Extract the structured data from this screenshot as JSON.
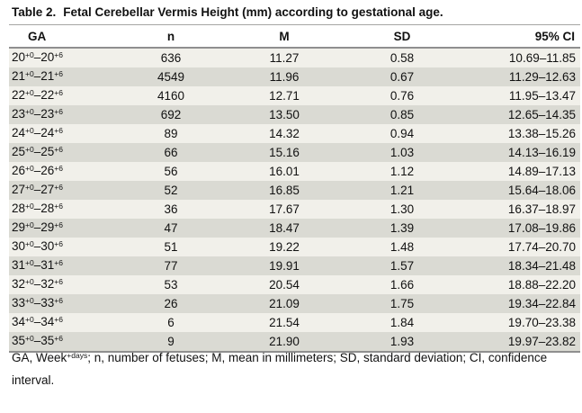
{
  "title": {
    "label": "Table 2.",
    "text": "Fetal Cerebellar Vermis Height (mm) according to gestational age."
  },
  "colors": {
    "row_light": "#f1f0ea",
    "row_dark": "#dadad3",
    "rule": "#8f8f8f",
    "text": "#111111",
    "background": "#ffffff"
  },
  "table": {
    "columns": [
      "GA",
      "n",
      "M",
      "SD",
      "95% CI"
    ],
    "rows": [
      {
        "ga": {
          "from": "20",
          "from_sup": "+0",
          "dash": "–",
          "to": "20",
          "to_sup": "+6"
        },
        "n": "636",
        "m": "11.27",
        "sd": "0.58",
        "ci": "10.69–11.85"
      },
      {
        "ga": {
          "from": "21",
          "from_sup": "+0",
          "dash": "–",
          "to": "21",
          "to_sup": "+6"
        },
        "n": "4549",
        "m": "11.96",
        "sd": "0.67",
        "ci": "11.29–12.63"
      },
      {
        "ga": {
          "from": "22",
          "from_sup": "+0",
          "dash": "–",
          "to": "22",
          "to_sup": "+6"
        },
        "n": "4160",
        "m": "12.71",
        "sd": "0.76",
        "ci": "11.95–13.47"
      },
      {
        "ga": {
          "from": "23",
          "from_sup": "+0",
          "dash": "–",
          "to": "23",
          "to_sup": "+6"
        },
        "n": "692",
        "m": "13.50",
        "sd": "0.85",
        "ci": "12.65–14.35"
      },
      {
        "ga": {
          "from": "24",
          "from_sup": "+0",
          "dash": "–",
          "to": "24",
          "to_sup": "+6"
        },
        "n": "89",
        "m": "14.32",
        "sd": "0.94",
        "ci": "13.38–15.26"
      },
      {
        "ga": {
          "from": "25",
          "from_sup": "+0",
          "dash": "–",
          "to": "25",
          "to_sup": "+6"
        },
        "n": "66",
        "m": "15.16",
        "sd": "1.03",
        "ci": "14.13–16.19"
      },
      {
        "ga": {
          "from": "26",
          "from_sup": "+0",
          "dash": "–",
          "to": "26",
          "to_sup": "+6"
        },
        "n": "56",
        "m": "16.01",
        "sd": "1.12",
        "ci": "14.89–17.13"
      },
      {
        "ga": {
          "from": "27",
          "from_sup": "+0",
          "dash": "–",
          "to": "27",
          "to_sup": "+6"
        },
        "n": "52",
        "m": "16.85",
        "sd": "1.21",
        "ci": "15.64–18.06"
      },
      {
        "ga": {
          "from": "28",
          "from_sup": "+0",
          "dash": "–",
          "to": "28",
          "to_sup": "+6"
        },
        "n": "36",
        "m": "17.67",
        "sd": "1.30",
        "ci": "16.37–18.97"
      },
      {
        "ga": {
          "from": "29",
          "from_sup": "+0",
          "dash": "–",
          "to": "29",
          "to_sup": "+6"
        },
        "n": "47",
        "m": "18.47",
        "sd": "1.39",
        "ci": "17.08–19.86"
      },
      {
        "ga": {
          "from": "30",
          "from_sup": "+0",
          "dash": "–",
          "to": "30",
          "to_sup": "+6"
        },
        "n": "51",
        "m": "19.22",
        "sd": "1.48",
        "ci": "17.74–20.70"
      },
      {
        "ga": {
          "from": "31",
          "from_sup": "+0",
          "dash": "–",
          "to": "31",
          "to_sup": "+6"
        },
        "n": "77",
        "m": "19.91",
        "sd": "1.57",
        "ci": "18.34–21.48"
      },
      {
        "ga": {
          "from": "32",
          "from_sup": "+0",
          "dash": "–",
          "to": "32",
          "to_sup": "+6"
        },
        "n": "53",
        "m": "20.54",
        "sd": "1.66",
        "ci": "18.88–22.20"
      },
      {
        "ga": {
          "from": "33",
          "from_sup": "+0",
          "dash": "–",
          "to": "33",
          "to_sup": "+6"
        },
        "n": "26",
        "m": "21.09",
        "sd": "1.75",
        "ci": "19.34–22.84"
      },
      {
        "ga": {
          "from": "34",
          "from_sup": "+0",
          "dash": "–",
          "to": "34",
          "to_sup": "+6"
        },
        "n": "6",
        "m": "21.54",
        "sd": "1.84",
        "ci": "19.70–23.38"
      },
      {
        "ga": {
          "from": "35",
          "from_sup": "+0",
          "dash": "–",
          "to": "35",
          "to_sup": "+6"
        },
        "n": "9",
        "m": "21.90",
        "sd": "1.93",
        "ci": "19.97–23.82"
      }
    ]
  },
  "footnote": {
    "prefix": "GA, Week",
    "sup": "+days",
    "suffix": "; n, number of fetuses; M, mean in millimeters; SD, standard deviation; CI, confidence interval."
  }
}
